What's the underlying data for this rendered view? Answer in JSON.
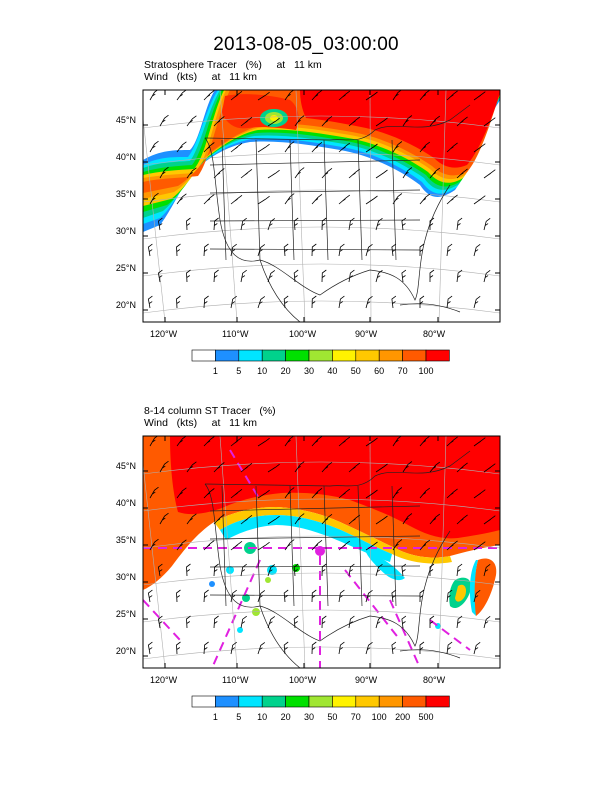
{
  "title": "2013-08-05_03:00:00",
  "panels": [
    {
      "id": "top",
      "line1": "Stratosphere Tracer   (%)     at   11 km",
      "line2": "Wind   (kts)     at   11 km",
      "lat_ticks": [
        "45°N",
        "40°N",
        "35°N",
        "30°N",
        "25°N",
        "20°N"
      ],
      "lon_ticks": [
        "120°W",
        "110°W",
        "100°W",
        "90°W",
        "80°W"
      ],
      "legend_labels": [
        "1",
        "5",
        "10",
        "20",
        "30",
        "40",
        "50",
        "60",
        "70",
        "100"
      ],
      "legend_colors": [
        "#ffffff",
        "#1e90ff",
        "#00e5ff",
        "#00d28c",
        "#00e000",
        "#a0e632",
        "#fff200",
        "#ffc800",
        "#ff9600",
        "#ff5a00",
        "#ff0000"
      ]
    },
    {
      "id": "bottom",
      "line1": "8-14 column ST Tracer   (%)",
      "line2": "Wind   (kts)     at   11 km",
      "lat_ticks": [
        "45°N",
        "40°N",
        "35°N",
        "30°N",
        "25°N",
        "20°N"
      ],
      "lon_ticks": [
        "120°W",
        "110°W",
        "100°W",
        "90°W",
        "80°W"
      ],
      "legend_labels": [
        "1",
        "5",
        "10",
        "20",
        "30",
        "50",
        "70",
        "100",
        "200",
        "500"
      ],
      "legend_colors": [
        "#ffffff",
        "#1e90ff",
        "#00e5ff",
        "#00d28c",
        "#00e000",
        "#a0e632",
        "#fff200",
        "#ffc800",
        "#ff9600",
        "#ff5a00",
        "#ff0000"
      ]
    }
  ],
  "colors": {
    "frame": "#000000",
    "graticule": "#b0b0b0",
    "state_lines": "#222222",
    "contour_magenta": "#e020e0"
  }
}
